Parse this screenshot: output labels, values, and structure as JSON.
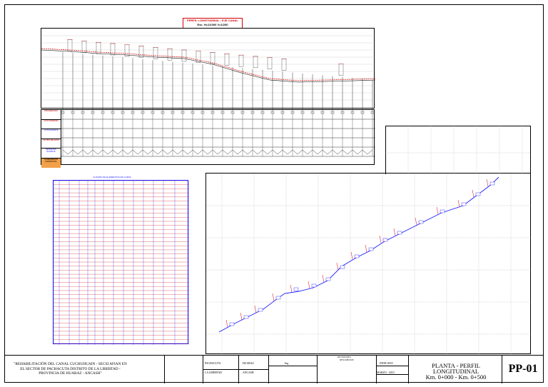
{
  "profile": {
    "title": "PERFIL LONGITUDINAL - EJE CANAL",
    "scale": "Esc. H=1/1000  V=1/200"
  },
  "guitar_labels": [
    {
      "text": "PROGRESIVAS",
      "color": "magenta"
    },
    {
      "text": "COTA TERRENO",
      "color": "magenta"
    },
    {
      "text": "COTA RASANTE",
      "color": "blue"
    },
    {
      "text": "ALTURA RELLENO",
      "color": "magenta"
    },
    {
      "text": "PENDIENTE RASANTE",
      "color": "blue"
    },
    {
      "text": "ALINEAMIENTO HORIZONTAL",
      "color": "orange"
    },
    {
      "text": "TIPO TERRENO",
      "color": "black"
    }
  ],
  "table": {
    "title": "CUADRO DE ELEMENTOS DE CURVA"
  },
  "titleblock": {
    "project": "\"REHABILITACIÓN DEL CANAL CUCHUHUAIN - SECSI AFIAN EN EL SECTOR DE PACHACUTA DISTRITO DE LA LIBERTAD - PROVINCIA DE HUARAZ - ANCASH\"",
    "district_1": "PACHACUTA",
    "district_2": "LA LIBERTAD",
    "province": "HUARAZ",
    "region": "ANCASH",
    "scale_label": "Esc.",
    "scale_value": "Ing.",
    "revision_header": "REVISIONES",
    "revision_desc": "DESCRIPCION",
    "scale_ind": "INDICADA",
    "date": "MARZO - 2010",
    "sheet_title_1": "PLANTA - PERFIL LONGITUDINAL",
    "sheet_title_2": "Km. 0+000 - Km. 0+500",
    "sheet_code": "PP-01"
  }
}
